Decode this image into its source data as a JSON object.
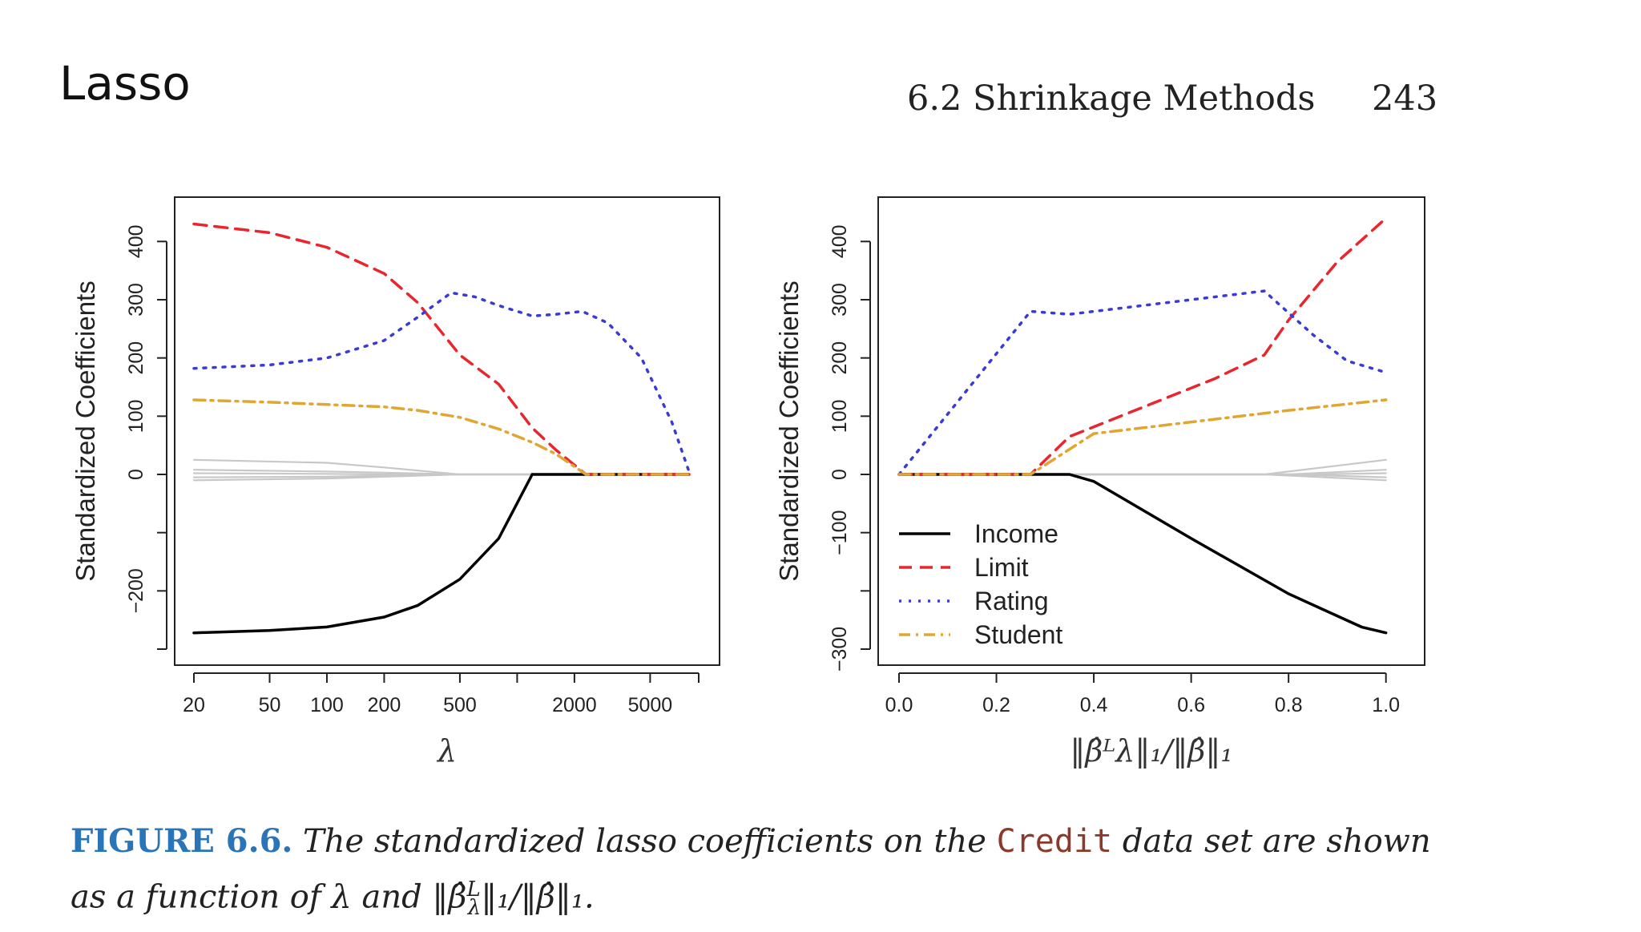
{
  "slide_title": "Lasso",
  "running_head": {
    "section": "6.2 Shrinkage Methods",
    "page": "243"
  },
  "chart_data": [
    {
      "type": "line",
      "panel": "left",
      "xscale": "log",
      "xlabel": "λ",
      "ylabel": "Standardized Coefficients",
      "xlim": [
        20,
        9000
      ],
      "ylim": [
        -300,
        450
      ],
      "xticks": [
        20,
        50,
        100,
        200,
        500,
        1000,
        2000,
        5000,
        9000
      ],
      "xtick_labels": [
        "20",
        "50",
        "100",
        "200",
        "500",
        "",
        "2000",
        "5000",
        ""
      ],
      "yticks": [
        -300,
        -200,
        -100,
        0,
        100,
        200,
        300,
        400
      ],
      "ytick_labels": [
        "",
        "−200",
        "",
        "0",
        "100",
        "200",
        "300",
        "400"
      ],
      "series": [
        {
          "name": "Income",
          "color": "#000000",
          "dash": "solid",
          "x": [
            20,
            50,
            100,
            200,
            300,
            500,
            800,
            1200
          ],
          "y": [
            -272,
            -268,
            -262,
            -245,
            -225,
            -180,
            -110,
            0
          ]
        },
        {
          "name": "Income-zero",
          "color": "#000000",
          "dash": "solid",
          "x": [
            1200,
            8000
          ],
          "y": [
            0,
            0
          ]
        },
        {
          "name": "Limit",
          "color": "#e8262e",
          "dash": "dashed",
          "x": [
            20,
            50,
            100,
            200,
            300,
            500,
            800,
            1200,
            1600,
            2300,
            8000
          ],
          "y": [
            430,
            415,
            390,
            345,
            295,
            205,
            155,
            80,
            42,
            0,
            0
          ]
        },
        {
          "name": "Rating",
          "color": "#3a3ad6",
          "dash": "dotted",
          "x": [
            20,
            50,
            100,
            200,
            300,
            450,
            600,
            800,
            1200,
            1600,
            2200,
            3000,
            4500,
            6500,
            8000
          ],
          "y": [
            182,
            188,
            200,
            230,
            270,
            312,
            305,
            290,
            272,
            275,
            280,
            260,
            200,
            90,
            5
          ]
        },
        {
          "name": "Student",
          "color": "#e0a632",
          "dash": "dashdot",
          "x": [
            20,
            50,
            100,
            200,
            300,
            500,
            800,
            1200,
            1600,
            2300,
            8000
          ],
          "y": [
            128,
            124,
            120,
            116,
            110,
            98,
            78,
            55,
            35,
            0,
            0
          ]
        },
        {
          "name": "Other",
          "color": "#c8c8c8",
          "dash": "solid",
          "x": [
            20,
            100,
            200,
            500,
            8000
          ],
          "y": [
            25,
            20,
            12,
            0,
            0
          ]
        },
        {
          "name": "Other",
          "color": "#c8c8c8",
          "dash": "solid",
          "x": [
            20,
            100,
            200,
            500,
            8000
          ],
          "y": [
            8,
            5,
            3,
            0,
            0
          ]
        },
        {
          "name": "Other",
          "color": "#c8c8c8",
          "dash": "solid",
          "x": [
            20,
            100,
            200,
            500,
            8000
          ],
          "y": [
            2,
            1,
            0,
            0,
            0
          ]
        },
        {
          "name": "Other",
          "color": "#c8c8c8",
          "dash": "solid",
          "x": [
            20,
            100,
            200,
            500,
            8000
          ],
          "y": [
            -5,
            -4,
            -2,
            0,
            0
          ]
        },
        {
          "name": "Other",
          "color": "#c8c8c8",
          "dash": "solid",
          "x": [
            20,
            100,
            200,
            500,
            8000
          ],
          "y": [
            -10,
            -7,
            -4,
            0,
            0
          ]
        }
      ]
    },
    {
      "type": "line",
      "panel": "right",
      "xscale": "linear",
      "xlabel": "‖β̂ᴸλ‖₁/‖β̂‖₁",
      "ylabel": "Standardized Coefficients",
      "xlim": [
        0,
        1.04
      ],
      "ylim": [
        -300,
        450
      ],
      "xticks": [
        0,
        0.2,
        0.4,
        0.6,
        0.8,
        1.0
      ],
      "xtick_labels": [
        "0.0",
        "0.2",
        "0.4",
        "0.6",
        "0.8",
        "1.0"
      ],
      "yticks": [
        -300,
        -200,
        -100,
        0,
        100,
        200,
        300,
        400
      ],
      "ytick_labels": [
        "−300",
        "",
        "−100",
        "0",
        "100",
        "200",
        "300",
        "400"
      ],
      "legend": {
        "position": "bottom-left",
        "entries": [
          "Income",
          "Limit",
          "Rating",
          "Student"
        ]
      },
      "series": [
        {
          "name": "Income",
          "color": "#000000",
          "dash": "solid",
          "x": [
            0,
            0.35,
            0.4,
            0.6,
            0.8,
            0.95,
            1.0
          ],
          "y": [
            0,
            0,
            -12,
            -110,
            -205,
            -262,
            -272
          ]
        },
        {
          "name": "Limit",
          "color": "#e8262e",
          "dash": "dashed",
          "x": [
            0,
            0.27,
            0.35,
            0.5,
            0.65,
            0.75,
            0.8,
            0.9,
            1.0
          ],
          "y": [
            0,
            0,
            65,
            115,
            165,
            205,
            265,
            365,
            440
          ]
        },
        {
          "name": "Rating",
          "color": "#3a3ad6",
          "dash": "dotted",
          "x": [
            0,
            0.27,
            0.35,
            0.5,
            0.6,
            0.75,
            0.85,
            0.92,
            1.0
          ],
          "y": [
            0,
            280,
            275,
            290,
            300,
            315,
            240,
            195,
            175
          ]
        },
        {
          "name": "Student",
          "color": "#e0a632",
          "dash": "dashdot",
          "x": [
            0,
            0.27,
            0.4,
            0.5,
            0.65,
            0.8,
            1.0
          ],
          "y": [
            0,
            0,
            70,
            80,
            95,
            110,
            128
          ]
        },
        {
          "name": "Other",
          "color": "#c8c8c8",
          "dash": "solid",
          "x": [
            0,
            0.75,
            1.0
          ],
          "y": [
            0,
            0,
            25
          ]
        },
        {
          "name": "Other",
          "color": "#c8c8c8",
          "dash": "solid",
          "x": [
            0,
            0.8,
            1.0
          ],
          "y": [
            0,
            0,
            8
          ]
        },
        {
          "name": "Other",
          "color": "#c8c8c8",
          "dash": "solid",
          "x": [
            0,
            0.85,
            1.0
          ],
          "y": [
            0,
            0,
            2
          ]
        },
        {
          "name": "Other",
          "color": "#c8c8c8",
          "dash": "solid",
          "x": [
            0,
            0.8,
            1.0
          ],
          "y": [
            0,
            0,
            -5
          ]
        },
        {
          "name": "Other",
          "color": "#c8c8c8",
          "dash": "solid",
          "x": [
            0,
            0.75,
            1.0
          ],
          "y": [
            0,
            0,
            -10
          ]
        }
      ]
    }
  ],
  "caption": {
    "label": "FIGURE 6.6.",
    "text_1": " The standardized lasso coefficients on the ",
    "dataset": "Credit",
    "text_2": " data set are shown as a function of λ and ‖β̂",
    "text_3": "‖₁/‖β̂‖₁.",
    "sup": "L",
    "sub": "λ"
  }
}
